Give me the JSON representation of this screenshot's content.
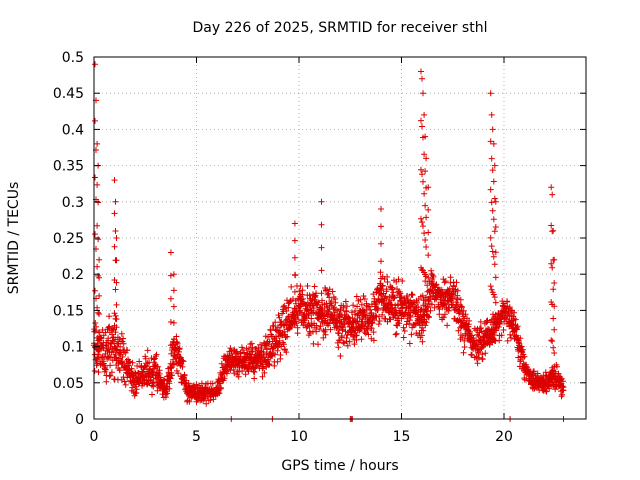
{
  "chart_data": {
    "type": "scatter",
    "title": "Day 226 of 2025, SRMTID for receiver sthl",
    "xlabel": "GPS time / hours",
    "ylabel": "SRMTID / TECUs",
    "xlim": [
      0,
      24
    ],
    "ylim": [
      0,
      0.5
    ],
    "x_ticks": [
      0,
      5,
      10,
      15,
      20
    ],
    "x_tick_labels": [
      "0",
      "5",
      "10",
      "15",
      "20"
    ],
    "y_ticks": [
      0,
      0.05,
      0.1,
      0.15,
      0.2,
      0.25,
      0.3,
      0.35,
      0.4,
      0.45,
      0.5
    ],
    "y_tick_labels": [
      "0",
      "0.05",
      "0.1",
      "0.15",
      "0.2",
      "0.25",
      "0.3",
      "0.35",
      "0.4",
      "0.45",
      "0.5"
    ],
    "grid": true,
    "marker": "+",
    "marker_color": "#dd0000",
    "series": [
      {
        "name": "SRMTID",
        "profile": {
          "note": "Approximate envelope of the dense point cloud: median value and spread per time knot (data units)",
          "x": [
            0,
            0.5,
            1,
            1.5,
            2,
            2.5,
            3,
            3.5,
            4,
            4.5,
            5,
            5.5,
            6,
            6.5,
            7,
            7.5,
            8,
            8.5,
            9,
            9.5,
            10,
            10.5,
            11,
            11.5,
            12,
            12.5,
            13,
            13.5,
            14,
            14.5,
            15,
            15.5,
            16,
            16.5,
            17,
            17.5,
            18,
            18.5,
            19,
            19.5,
            20,
            20.5,
            21,
            21.5,
            22,
            22.5,
            22.9
          ],
          "median": [
            0.1,
            0.09,
            0.1,
            0.08,
            0.05,
            0.07,
            0.06,
            0.04,
            0.1,
            0.04,
            0.035,
            0.035,
            0.04,
            0.08,
            0.08,
            0.08,
            0.085,
            0.09,
            0.11,
            0.14,
            0.16,
            0.15,
            0.14,
            0.15,
            0.13,
            0.13,
            0.14,
            0.14,
            0.17,
            0.16,
            0.15,
            0.15,
            0.14,
            0.18,
            0.16,
            0.17,
            0.13,
            0.1,
            0.11,
            0.12,
            0.15,
            0.13,
            0.07,
            0.05,
            0.05,
            0.06,
            0.04
          ],
          "spread": [
            0.06,
            0.06,
            0.06,
            0.05,
            0.03,
            0.04,
            0.04,
            0.02,
            0.05,
            0.02,
            0.02,
            0.02,
            0.02,
            0.03,
            0.03,
            0.03,
            0.04,
            0.05,
            0.05,
            0.06,
            0.06,
            0.05,
            0.05,
            0.05,
            0.05,
            0.05,
            0.05,
            0.05,
            0.05,
            0.05,
            0.05,
            0.05,
            0.05,
            0.05,
            0.05,
            0.05,
            0.05,
            0.04,
            0.04,
            0.04,
            0.04,
            0.04,
            0.03,
            0.02,
            0.02,
            0.03,
            0.02
          ]
        },
        "spikes": [
          {
            "x": 0.05,
            "peak": 0.49
          },
          {
            "x": 0.1,
            "peak": 0.44
          },
          {
            "x": 0.15,
            "peak": 0.38
          },
          {
            "x": 0.2,
            "peak": 0.35
          },
          {
            "x": 0.25,
            "peak": 0.22
          },
          {
            "x": 1.0,
            "peak": 0.33
          },
          {
            "x": 1.05,
            "peak": 0.3
          },
          {
            "x": 1.1,
            "peak": 0.25
          },
          {
            "x": 3.75,
            "peak": 0.23
          },
          {
            "x": 3.9,
            "peak": 0.2
          },
          {
            "x": 9.8,
            "peak": 0.27
          },
          {
            "x": 11.1,
            "peak": 0.3
          },
          {
            "x": 14.0,
            "peak": 0.29
          },
          {
            "x": 15.95,
            "peak": 0.48
          },
          {
            "x": 16.0,
            "peak": 0.47
          },
          {
            "x": 16.05,
            "peak": 0.45
          },
          {
            "x": 16.1,
            "peak": 0.42
          },
          {
            "x": 16.15,
            "peak": 0.39
          },
          {
            "x": 16.2,
            "peak": 0.36
          },
          {
            "x": 16.3,
            "peak": 0.32
          },
          {
            "x": 19.35,
            "peak": 0.45
          },
          {
            "x": 19.4,
            "peak": 0.42
          },
          {
            "x": 19.45,
            "peak": 0.4
          },
          {
            "x": 19.5,
            "peak": 0.38
          },
          {
            "x": 19.55,
            "peak": 0.35
          },
          {
            "x": 19.6,
            "peak": 0.3
          },
          {
            "x": 22.3,
            "peak": 0.32
          },
          {
            "x": 22.35,
            "peak": 0.31
          },
          {
            "x": 22.4,
            "peak": 0.26
          },
          {
            "x": 22.45,
            "peak": 0.22
          }
        ],
        "zero_points_x": [
          6.7,
          8.7,
          12.5,
          12.55,
          12.6,
          20.3,
          22.9
        ]
      }
    ]
  }
}
